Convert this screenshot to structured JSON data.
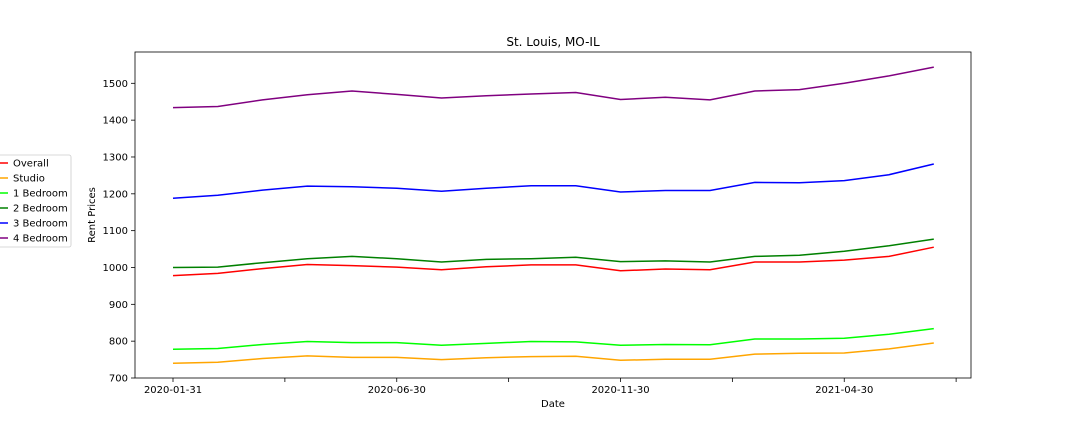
{
  "chart_data": {
    "type": "line",
    "title": "St. Louis, MO-IL",
    "xlabel": "Date",
    "ylabel": "Rent Prices",
    "x": [
      "2020-01-31",
      "2020-02-29",
      "2020-03-31",
      "2020-04-30",
      "2020-05-31",
      "2020-06-30",
      "2020-07-31",
      "2020-08-31",
      "2020-09-30",
      "2020-10-31",
      "2020-11-30",
      "2020-12-31",
      "2021-01-31",
      "2021-02-28",
      "2021-03-31",
      "2021-04-30",
      "2021-05-31",
      "2021-06-30"
    ],
    "xticks": [
      "2020-01-31",
      "2020-06-30",
      "2020-11-30",
      "2021-04-30"
    ],
    "ylim": [
      700,
      1585
    ],
    "yticks": [
      700,
      800,
      900,
      1000,
      1100,
      1200,
      1300,
      1400,
      1500
    ],
    "grid": false,
    "legend_position": "left, outside plot",
    "series": [
      {
        "name": "Overall",
        "color": "#ff0000",
        "values": [
          978,
          984,
          997,
          1008,
          1005,
          1001,
          994,
          1002,
          1007,
          1007,
          991,
          996,
          994,
          1015,
          1015,
          1020,
          1030,
          1055
        ]
      },
      {
        "name": "Studio",
        "color": "#ffa500",
        "values": [
          740,
          743,
          753,
          760,
          756,
          756,
          750,
          755,
          758,
          759,
          748,
          751,
          751,
          765,
          767,
          768,
          779,
          795
        ]
      },
      {
        "name": "1 Bedroom",
        "color": "#00ff00",
        "values": [
          778,
          780,
          791,
          799,
          796,
          796,
          789,
          794,
          799,
          798,
          789,
          791,
          790,
          806,
          806,
          808,
          819,
          834
        ]
      },
      {
        "name": "2 Bedroom",
        "color": "#008000",
        "values": [
          1000,
          1001,
          1013,
          1024,
          1030,
          1024,
          1015,
          1022,
          1024,
          1028,
          1016,
          1018,
          1015,
          1030,
          1033,
          1044,
          1059,
          1077
        ]
      },
      {
        "name": "3 Bedroom",
        "color": "#0000ff",
        "values": [
          1188,
          1196,
          1210,
          1221,
          1219,
          1215,
          1207,
          1215,
          1222,
          1222,
          1205,
          1209,
          1209,
          1231,
          1230,
          1236,
          1252,
          1281
        ]
      },
      {
        "name": "4 Bedroom",
        "color": "#800080",
        "values": [
          1434,
          1437,
          1455,
          1469,
          1479,
          1470,
          1460,
          1466,
          1471,
          1475,
          1456,
          1462,
          1455,
          1479,
          1483,
          1500,
          1520,
          1544
        ]
      }
    ]
  }
}
